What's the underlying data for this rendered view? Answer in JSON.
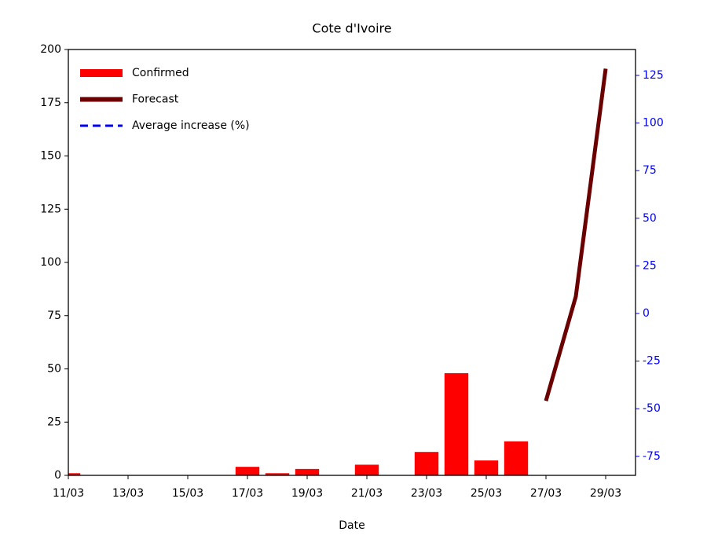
{
  "chart_data": {
    "type": "bar",
    "title": "Cote d'Ivoire",
    "x_label": "Date",
    "categories": [
      "11/03",
      null,
      "13/03",
      null,
      "15/03",
      null,
      "17/03",
      null,
      "19/03",
      null,
      "21/03",
      null,
      "23/03",
      null,
      "25/03",
      null,
      "27/03",
      null,
      "29/03"
    ],
    "series": [
      {
        "name": "Confirmed",
        "type": "bar",
        "color": "#ff0000",
        "values": [
          1,
          0,
          0,
          0,
          0,
          0,
          4,
          1,
          3,
          0,
          5,
          0,
          11,
          48,
          7,
          16,
          0,
          0,
          0
        ]
      },
      {
        "name": "Forecast",
        "type": "line",
        "color": "#6b0000",
        "values": [
          null,
          null,
          null,
          null,
          null,
          null,
          null,
          null,
          null,
          null,
          null,
          null,
          null,
          null,
          null,
          null,
          35,
          84,
          191
        ]
      },
      {
        "name": "Average increase (%)",
        "type": "line",
        "color": "#0000ff",
        "dashed": true,
        "axis": "y2",
        "values": [
          null,
          null,
          null,
          null,
          null,
          null,
          null,
          null,
          null,
          null,
          null,
          null,
          null,
          null,
          null,
          null,
          null,
          null,
          null
        ]
      }
    ],
    "ylim": [
      0,
      200
    ],
    "yticks": [
      0,
      25,
      50,
      75,
      100,
      125,
      150,
      175,
      200
    ],
    "y2lim": [
      -85,
      138.6
    ],
    "y2ticks": [
      -75,
      -50,
      -25,
      0,
      25,
      50,
      75,
      100,
      125
    ],
    "y2color": "#0000ff",
    "legend": "upper left"
  }
}
